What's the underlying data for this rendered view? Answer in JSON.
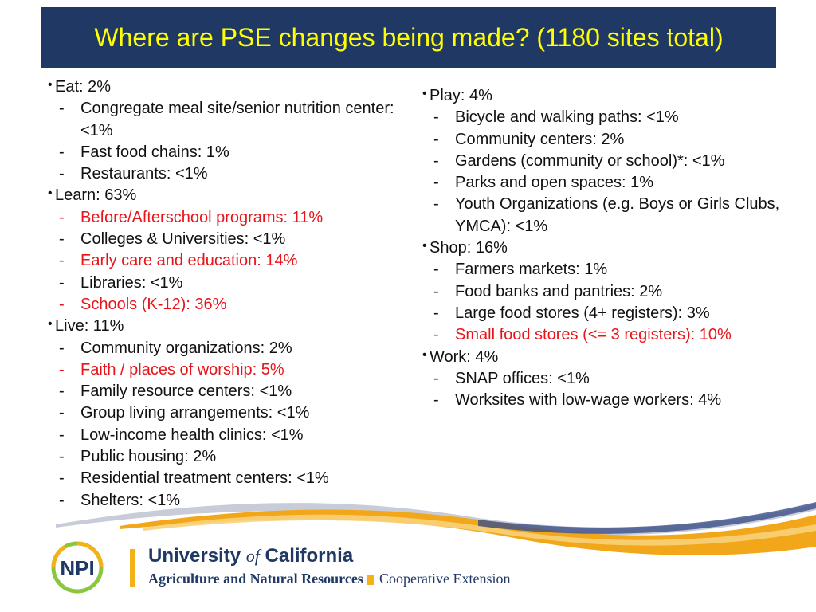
{
  "title": "Where are PSE changes being made? (1180 sites total)",
  "colors": {
    "title_bar": "#1f3864",
    "title_text": "#ffff00",
    "highlight": "#e8141a",
    "body_text": "#111111",
    "brand_gold": "#f4b21a",
    "brand_navy": "#1f3864"
  },
  "columns": {
    "left": [
      {
        "label": "Eat: 2%",
        "items": [
          {
            "text": "Congregate meal site/senior nutrition center:<1%",
            "highlight": false
          },
          {
            "text": "Fast food chains: 1%",
            "highlight": false
          },
          {
            "text": "Restaurants: <1%",
            "highlight": false
          }
        ]
      },
      {
        "label": "Learn: 63%",
        "items": [
          {
            "text": "Before/Afterschool programs: 11%",
            "highlight": true
          },
          {
            "text": "Colleges & Universities: <1%",
            "highlight": false
          },
          {
            "text": "Early care and education: 14%",
            "highlight": true
          },
          {
            "text": "Libraries: <1%",
            "highlight": false
          },
          {
            "text": "Schools (K-12): 36%",
            "highlight": true
          }
        ]
      },
      {
        "label": "Live: 11%",
        "items": [
          {
            "text": "Community organizations: 2%",
            "highlight": false
          },
          {
            "text": "Faith / places of worship: 5%",
            "highlight": true
          },
          {
            "text": "Family resource centers: <1%",
            "highlight": false
          },
          {
            "text": "Group living arrangements: <1%",
            "highlight": false
          },
          {
            "text": "Low-income health clinics: <1%",
            "highlight": false
          },
          {
            "text": "Public housing: 2%",
            "highlight": false
          },
          {
            "text": "Residential treatment centers: <1%",
            "highlight": false
          },
          {
            "text": "Shelters: <1%",
            "highlight": false
          }
        ]
      }
    ],
    "right": [
      {
        "label": "Play: 4%",
        "items": [
          {
            "text": "Bicycle and walking paths: <1%",
            "highlight": false
          },
          {
            "text": "Community centers: 2%",
            "highlight": false
          },
          {
            "text": "Gardens (community or school)*: <1%",
            "highlight": false
          },
          {
            "text": "Parks and open spaces: 1%",
            "highlight": false
          },
          {
            "text": "Youth Organizations (e.g. Boys or Girls Clubs, YMCA): <1%",
            "highlight": false
          }
        ]
      },
      {
        "label": "Shop: 16%",
        "items": [
          {
            "text": "Farmers markets: 1%",
            "highlight": false
          },
          {
            "text": "Food banks and pantries: 2%",
            "highlight": false
          },
          {
            "text": "Large food stores (4+ registers): 3%",
            "highlight": false
          },
          {
            "text": "Small food stores (<= 3 registers): 10%",
            "highlight": true
          }
        ]
      },
      {
        "label": "Work: 4%",
        "items": [
          {
            "text": "SNAP offices: <1%",
            "highlight": false
          },
          {
            "text": "Worksites with low-wage workers: 4%",
            "highlight": false
          }
        ]
      }
    ]
  },
  "footer": {
    "npi_logo": "NPI",
    "uc_name_pre": "University ",
    "uc_name_of": "of",
    "uc_name_post": " California",
    "uc_subtitle": "Agriculture and Natural Resources",
    "extension": "Cooperative Extension"
  }
}
